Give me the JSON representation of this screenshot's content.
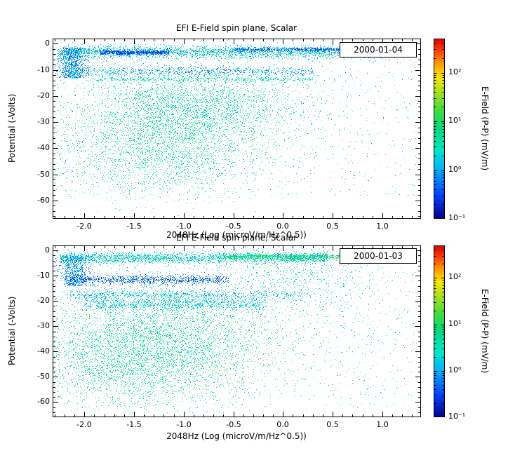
{
  "figure": {
    "background": "#ffffff"
  },
  "colormap": {
    "stops": [
      [
        0.0,
        "#00008c"
      ],
      [
        0.14,
        "#0046ff"
      ],
      [
        0.28,
        "#00b4ff"
      ],
      [
        0.38,
        "#00e6c8"
      ],
      [
        0.5,
        "#00dc82"
      ],
      [
        0.6,
        "#3cdc3c"
      ],
      [
        0.7,
        "#a0e11e"
      ],
      [
        0.79,
        "#ffe600"
      ],
      [
        0.87,
        "#ff9100"
      ],
      [
        0.94,
        "#ff3700"
      ],
      [
        1.0,
        "#dc0000"
      ]
    ]
  },
  "chart_data": [
    {
      "type": "scatter",
      "title": "EFI  E-Field spin plane, Scalar",
      "xlabel": "2048Hz (Log (microV/m/Hz^0.5))",
      "ylabel": "Potential (-Volts)",
      "date_label": "2000-01-04",
      "xlim": [
        -2.32,
        1.39
      ],
      "ylim": [
        -67,
        2
      ],
      "xticks": {
        "values": [
          -2.0,
          -1.5,
          -1.0,
          -0.5,
          0.0,
          0.5,
          1.0
        ],
        "labels": [
          "-2.0",
          "-1.5",
          "-1.0",
          "-0.5",
          "0.0",
          "0.5",
          "1.0"
        ]
      },
      "yticks": {
        "values": [
          0,
          -10,
          -20,
          -30,
          -40,
          -50,
          -60
        ],
        "labels": [
          "0",
          "-10",
          "-20",
          "-30",
          "-40",
          "-50",
          "-60"
        ]
      },
      "colorbar": {
        "label": "E-Field (P-P) (mV/m)",
        "log_min": -1,
        "log_max": 2.7,
        "tick_exponents": [
          2,
          1,
          0,
          -1
        ],
        "tick_labels": [
          "10²",
          "10¹",
          "10⁰",
          "10⁻¹"
        ]
      },
      "clusters": [
        {
          "name": "surface-band",
          "n": 2600,
          "xd": "u",
          "x": [
            -2.25,
            0.7
          ],
          "yd": "g",
          "y": [
            -3.0,
            1.2
          ],
          "v": [
            -0.3,
            1.0
          ]
        },
        {
          "name": "blue-streak-left",
          "n": 700,
          "xd": "u",
          "x": [
            -1.85,
            -1.15
          ],
          "yd": "g",
          "y": [
            -3.2,
            0.4
          ],
          "v": [
            -0.8,
            -0.2
          ]
        },
        {
          "name": "blue-streak-right",
          "n": 500,
          "xd": "u",
          "x": [
            -0.5,
            0.6
          ],
          "yd": "g",
          "y": [
            -2.1,
            0.35
          ],
          "v": [
            -0.7,
            -0.1
          ]
        },
        {
          "name": "left-edge-strip",
          "n": 900,
          "xd": "g",
          "x": [
            -2.13,
            0.07
          ],
          "yd": "u",
          "y": [
            -13,
            -1.5
          ],
          "v": [
            -0.6,
            0.3
          ]
        },
        {
          "name": "band-minus10",
          "n": 900,
          "xd": "u",
          "x": [
            -2.2,
            0.3
          ],
          "yd": "g",
          "y": [
            -10.5,
            1.0
          ],
          "v": [
            -0.5,
            0.5
          ]
        },
        {
          "name": "line-minus13",
          "n": 450,
          "xd": "u",
          "x": [
            -1.9,
            0.3
          ],
          "yd": "g",
          "y": [
            -13.5,
            0.4
          ],
          "v": [
            0.2,
            0.9
          ]
        },
        {
          "name": "main-cloud",
          "n": 3800,
          "xd": "g",
          "x": [
            -1.15,
            0.55
          ],
          "yd": "g",
          "y": [
            -33,
            11
          ],
          "v": [
            0.2,
            1.2
          ]
        },
        {
          "name": "upper-cloud",
          "n": 1300,
          "xd": "g",
          "x": [
            -0.8,
            0.55
          ],
          "yd": "g",
          "y": [
            -22,
            6
          ],
          "v": [
            0.1,
            1.0
          ]
        },
        {
          "name": "deep-tail",
          "n": 500,
          "xd": "g",
          "x": [
            -1.4,
            0.5
          ],
          "yd": "g",
          "y": [
            -48,
            6
          ],
          "v": [
            0.2,
            0.9
          ]
        },
        {
          "name": "sparse-field",
          "n": 1100,
          "xd": "u",
          "x": [
            -2.3,
            1.35
          ],
          "yd": "u",
          "y": [
            -58,
            -0.5
          ],
          "v": [
            -0.5,
            1.2
          ]
        },
        {
          "name": "top-right-sparse",
          "n": 150,
          "xd": "u",
          "x": [
            0.6,
            1.3
          ],
          "yd": "g",
          "y": [
            -3.5,
            1.5
          ],
          "v": [
            -0.2,
            0.8
          ]
        },
        {
          "name": "warm-specks",
          "n": 45,
          "xd": "u",
          "x": [
            -2.2,
            1.25
          ],
          "yd": "u",
          "y": [
            -55,
            -1
          ],
          "v": [
            1.5,
            2.6
          ]
        }
      ]
    },
    {
      "type": "scatter",
      "title": "EFI  E-Field spin plane, Scalar",
      "xlabel": "2048Hz (Log (microV/m/Hz^0.5))",
      "ylabel": "Potential (-Volts)",
      "date_label": "2000-01-03",
      "xlim": [
        -2.32,
        1.39
      ],
      "ylim": [
        -66,
        2
      ],
      "xticks": {
        "values": [
          -2.0,
          -1.5,
          -1.0,
          -0.5,
          0.0,
          0.5,
          1.0
        ],
        "labels": [
          "-2.0",
          "-1.5",
          "-1.0",
          "-0.5",
          "0.0",
          "0.5",
          "1.0"
        ]
      },
      "yticks": {
        "values": [
          0,
          -10,
          -20,
          -30,
          -40,
          -50,
          -60
        ],
        "labels": [
          "0",
          "-10",
          "-20",
          "-30",
          "-40",
          "-50",
          "-60"
        ]
      },
      "colorbar": {
        "label": "E-Field (P-P) (mV/m)",
        "log_min": -1,
        "log_max": 2.7,
        "tick_exponents": [
          2,
          1,
          0,
          -1
        ],
        "tick_labels": [
          "10²",
          "10¹",
          "10⁰",
          "10⁻¹"
        ]
      },
      "clusters": [
        {
          "name": "surface-band",
          "n": 2300,
          "xd": "u",
          "x": [
            -2.25,
            0.45
          ],
          "yd": "g",
          "y": [
            -2.8,
            1.1
          ],
          "v": [
            -0.2,
            1.0
          ]
        },
        {
          "name": "green-band-right",
          "n": 800,
          "xd": "u",
          "x": [
            -0.6,
            0.75
          ],
          "yd": "g",
          "y": [
            -2.3,
            0.5
          ],
          "v": [
            0.5,
            1.3
          ]
        },
        {
          "name": "left-edge-strip",
          "n": 700,
          "xd": "g",
          "x": [
            -2.1,
            0.08
          ],
          "yd": "u",
          "y": [
            -14,
            -2
          ],
          "v": [
            -0.5,
            0.3
          ]
        },
        {
          "name": "blue-band-minus11",
          "n": 1000,
          "xd": "u",
          "x": [
            -2.2,
            -0.55
          ],
          "yd": "g",
          "y": [
            -11.5,
            0.9
          ],
          "v": [
            -0.8,
            -0.1
          ]
        },
        {
          "name": "cyan-band-minus17",
          "n": 700,
          "xd": "u",
          "x": [
            -2.15,
            0.2
          ],
          "yd": "g",
          "y": [
            -17.5,
            1.0
          ],
          "v": [
            -0.3,
            0.5
          ]
        },
        {
          "name": "band-minus21",
          "n": 900,
          "xd": "u",
          "x": [
            -2.0,
            -0.2
          ],
          "yd": "g",
          "y": [
            -21,
            1.2
          ],
          "v": [
            -0.2,
            0.6
          ]
        },
        {
          "name": "main-cloud",
          "n": 4200,
          "xd": "g",
          "x": [
            -1.2,
            0.6
          ],
          "yd": "g",
          "y": [
            -35,
            12
          ],
          "v": [
            0.2,
            1.2
          ]
        },
        {
          "name": "lower-cloud",
          "n": 1500,
          "xd": "g",
          "x": [
            -1.55,
            0.45
          ],
          "yd": "g",
          "y": [
            -44,
            9
          ],
          "v": [
            0.3,
            1.1
          ]
        },
        {
          "name": "right-mid-cluster",
          "n": 600,
          "xd": "g",
          "x": [
            0.15,
            0.4
          ],
          "yd": "g",
          "y": [
            -12,
            7
          ],
          "v": [
            0.0,
            0.9
          ]
        },
        {
          "name": "sparse-field",
          "n": 1200,
          "xd": "u",
          "x": [
            -2.3,
            1.35
          ],
          "yd": "u",
          "y": [
            -62,
            -0.5
          ],
          "v": [
            -0.4,
            1.2
          ]
        },
        {
          "name": "warm-specks",
          "n": 50,
          "xd": "u",
          "x": [
            -2.2,
            1.25
          ],
          "yd": "u",
          "y": [
            -58,
            -1
          ],
          "v": [
            1.5,
            2.6
          ]
        }
      ]
    }
  ]
}
